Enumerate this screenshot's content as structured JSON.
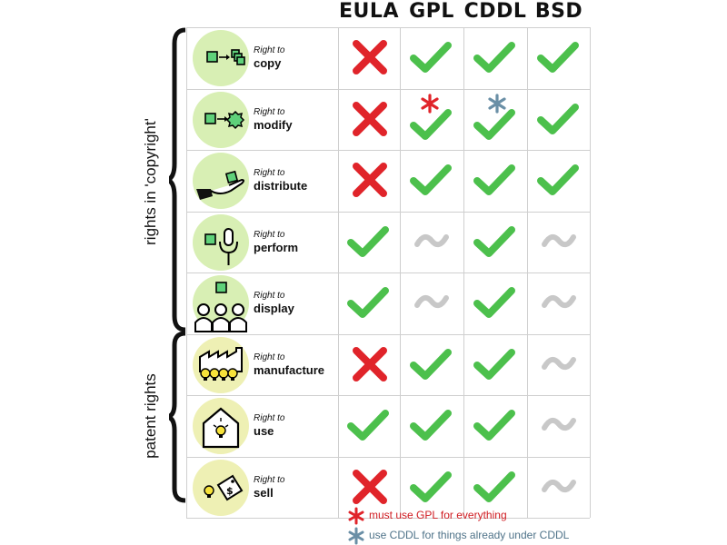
{
  "headers": [
    "EULA",
    "GPL",
    "CDDL",
    "BSD"
  ],
  "right_to_prefix": "Right to",
  "groups": {
    "copyright_label": "rights in 'copyright'",
    "patent_label": "patent rights"
  },
  "rows": [
    {
      "right": "copy",
      "icon": "copy-icon",
      "circle_color": "#d8efb4",
      "values": [
        "cross",
        "check",
        "check",
        "check"
      ]
    },
    {
      "right": "modify",
      "icon": "modify-icon",
      "circle_color": "#d8efb4",
      "values": [
        "cross",
        "check-red-star",
        "check-blue-star",
        "check"
      ]
    },
    {
      "right": "distribute",
      "icon": "distribute-icon",
      "circle_color": "#d8efb4",
      "values": [
        "cross",
        "check",
        "check",
        "check"
      ]
    },
    {
      "right": "perform",
      "icon": "perform-icon",
      "circle_color": "#d8efb4",
      "values": [
        "check",
        "tilde",
        "check",
        "tilde"
      ]
    },
    {
      "right": "display",
      "icon": "display-icon",
      "circle_color": "#d8efb4",
      "values": [
        "check",
        "tilde",
        "check",
        "tilde"
      ]
    },
    {
      "right": "manufacture",
      "icon": "manufacture-icon",
      "circle_color": "#eef0b4",
      "values": [
        "cross",
        "check",
        "check",
        "tilde"
      ]
    },
    {
      "right": "use",
      "icon": "use-icon",
      "circle_color": "#eef0b4",
      "values": [
        "check",
        "check",
        "check",
        "tilde"
      ]
    },
    {
      "right": "sell",
      "icon": "sell-icon",
      "circle_color": "#eef0b4",
      "values": [
        "cross",
        "check",
        "check",
        "tilde"
      ]
    }
  ],
  "legend": [
    {
      "symbol": "red-asterisk-icon",
      "text": "must use GPL for everything"
    },
    {
      "symbol": "blue-asterisk-icon",
      "text": "use CDDL for things already under CDDL"
    }
  ],
  "colors": {
    "check": "#4cc04c",
    "cross": "#e0242a",
    "tilde": "#c8c8c8",
    "red_star": "#e0242a",
    "blue_star": "#6a8fa6",
    "grid": "#cfcfcf"
  }
}
